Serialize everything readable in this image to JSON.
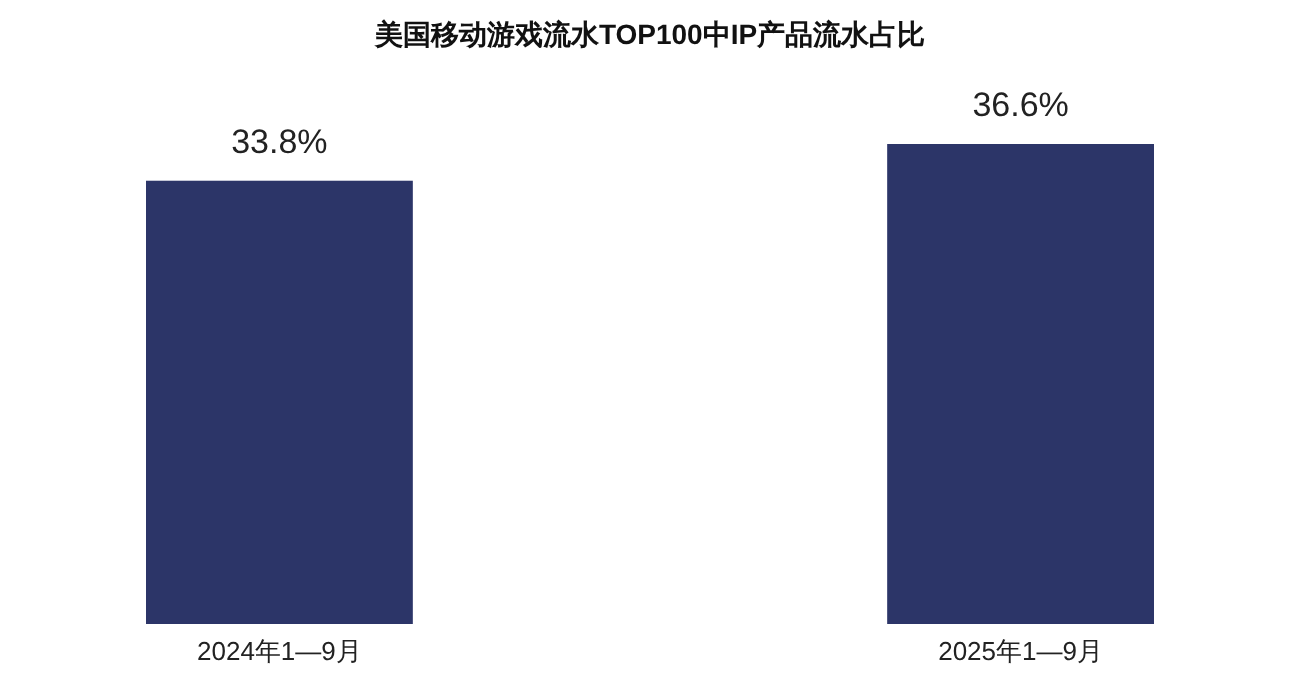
{
  "chart_data": {
    "type": "bar",
    "title": "美国移动游戏流水TOP100中IP产品流水占比",
    "categories": [
      "2024年1—9月",
      "2025年1—9月"
    ],
    "values": [
      33.8,
      36.6
    ],
    "value_labels": [
      "33.8%",
      "36.6%"
    ],
    "color": "#2c3568"
  }
}
